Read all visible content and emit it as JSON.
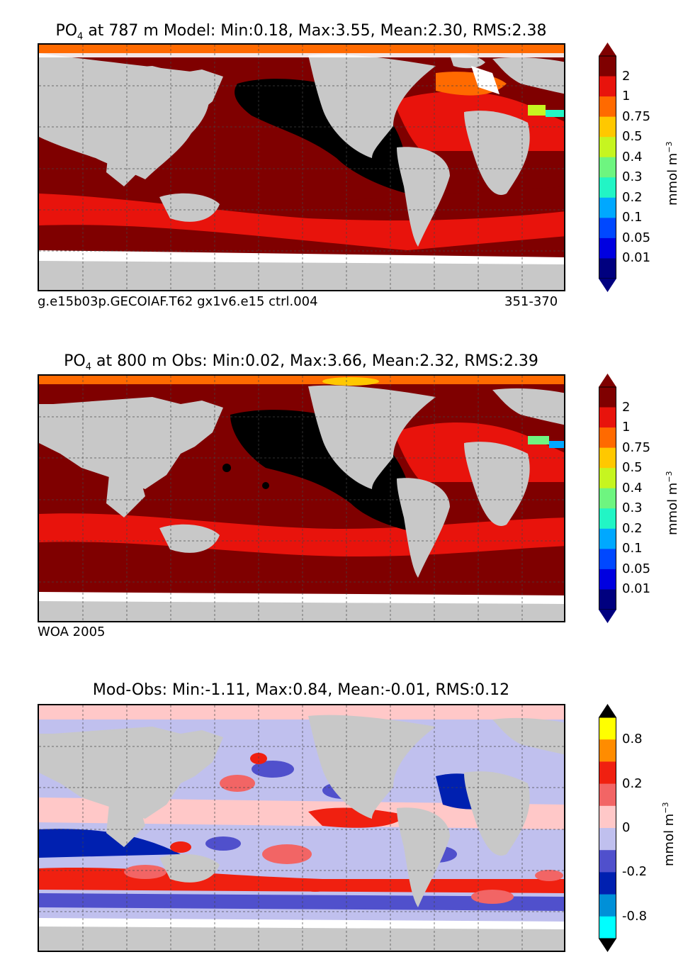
{
  "panels": [
    {
      "title_prefix": "PO",
      "title_sub": "4",
      "title_rest": " at 787 m Model: Min:0.18, Max:3.55, Mean:2.30, RMS:2.38",
      "caption_left": "g.e15b03p.GECOIAF.T62 gx1v6.e15 ctrl.004",
      "caption_right": "351-370",
      "colorbar_ticks": [
        "2",
        "1",
        "0.75",
        "0.5",
        "0.4",
        "0.3",
        "0.2",
        "0.1",
        "0.05",
        "0.01"
      ],
      "colorbar_colors": [
        "#7f0000",
        "#e8130c",
        "#ff6a00",
        "#ffc800",
        "#c6f520",
        "#6ef580",
        "#22f5c5",
        "#00a8ff",
        "#0048ff",
        "#0000e0",
        "#00007f"
      ]
    },
    {
      "title_prefix": "PO",
      "title_sub": "4",
      "title_rest": " at 800 m Obs: Min:0.02, Max:3.66, Mean:2.32, RMS:2.39",
      "caption_left": "WOA 2005",
      "caption_right": "",
      "colorbar_ticks": [
        "2",
        "1",
        "0.75",
        "0.5",
        "0.4",
        "0.3",
        "0.2",
        "0.1",
        "0.05",
        "0.01"
      ],
      "colorbar_colors": [
        "#7f0000",
        "#e8130c",
        "#ff6a00",
        "#ffc800",
        "#c6f520",
        "#6ef580",
        "#22f5c5",
        "#00a8ff",
        "#0048ff",
        "#0000e0",
        "#00007f"
      ]
    },
    {
      "title_prefix": "Mod-Obs: Min:-1.11, Max:0.84, Mean:-0.01, RMS:0.12",
      "title_sub": "",
      "title_rest": "",
      "caption_left": "",
      "caption_right": "",
      "colorbar_ticks": [
        "0.8",
        "0.2",
        "0",
        "-0.2",
        "-0.8"
      ],
      "colorbar_colors": [
        "#ffff00",
        "#ff8c00",
        "#f02010",
        "#f26565",
        "#ffc8c8",
        "#c0c0ee",
        "#5050cc",
        "#0020b0",
        "#0090d8",
        "#00ffff"
      ]
    }
  ],
  "unit_label": "mmol m",
  "unit_sup": "−3",
  "colors": {
    "land": "#c8c8c8",
    "ice": "#ffffff",
    "high": "#000000"
  }
}
